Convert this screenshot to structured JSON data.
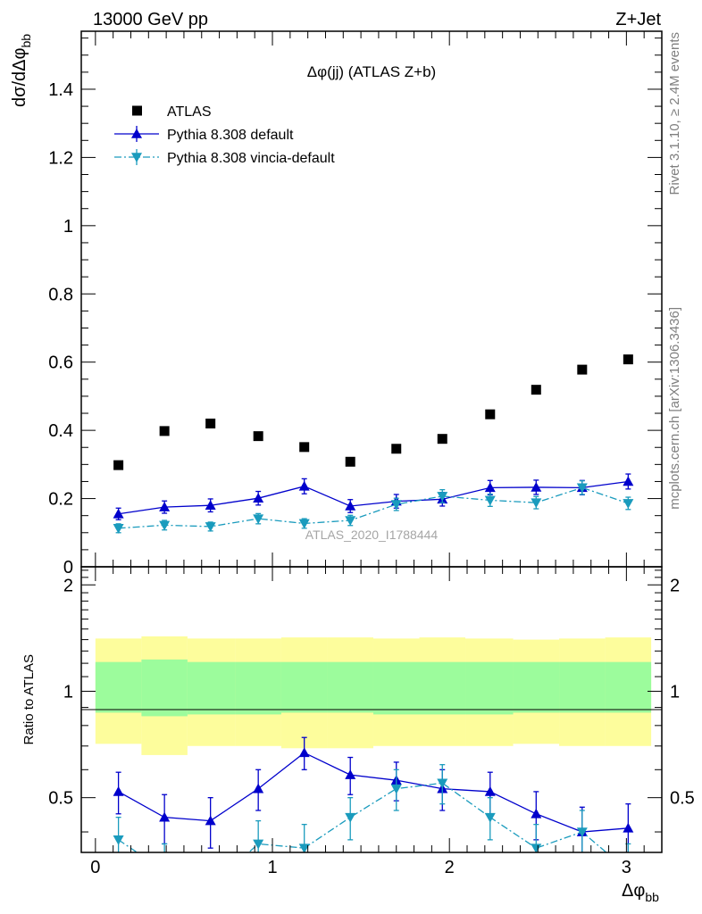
{
  "header": {
    "left": "13000 GeV pp",
    "right": "Z+Jet"
  },
  "side_labels": {
    "rivet": "Rivet 3.1.10, ≥ 2.4M events",
    "mcplots": "mcplots.cern.ch [arXiv:1306.3436]"
  },
  "watermark": "ATLAS_2020_I1788444",
  "chart_data": [
    {
      "type": "scatter",
      "title": "Δφ(jj) (ATLAS Z+b)",
      "ylabel": "dσ/dΔφbb",
      "xlim": [
        -0.08,
        3.2
      ],
      "ylim": [
        0,
        1.57
      ],
      "yticks": [
        0,
        0.2,
        0.4,
        0.6,
        0.8,
        1,
        1.2,
        1.4
      ],
      "ytick_labels": [
        "0",
        "0.2",
        "0.4",
        "0.6",
        "0.8",
        "1",
        "1.2",
        "1.4"
      ],
      "x": [
        0.13,
        0.39,
        0.65,
        0.92,
        1.18,
        1.44,
        1.7,
        1.96,
        2.23,
        2.49,
        2.75,
        3.01
      ],
      "series": [
        {
          "name": "ATLAS",
          "marker": "square",
          "color": "#000000",
          "values": [
            0.298,
            0.398,
            0.42,
            0.383,
            0.351,
            0.308,
            0.346,
            0.375,
            0.447,
            0.519,
            0.578,
            0.608
          ]
        },
        {
          "name": "Pythia 8.308 default",
          "marker": "triangle-up",
          "line": "solid",
          "color": "#0000cc",
          "values": [
            0.155,
            0.175,
            0.18,
            0.201,
            0.236,
            0.178,
            0.192,
            0.198,
            0.232,
            0.233,
            0.232,
            0.25
          ],
          "errors": [
            0.017,
            0.018,
            0.019,
            0.02,
            0.022,
            0.019,
            0.02,
            0.02,
            0.021,
            0.021,
            0.021,
            0.022
          ]
        },
        {
          "name": "Pythia 8.308 vincia-default",
          "marker": "triangle-down",
          "line": "dashdot",
          "color": "#1a9bbd",
          "values": [
            0.113,
            0.122,
            0.118,
            0.141,
            0.127,
            0.136,
            0.183,
            0.207,
            0.195,
            0.188,
            0.232,
            0.186
          ],
          "errors": [
            0.013,
            0.014,
            0.013,
            0.015,
            0.014,
            0.015,
            0.018,
            0.019,
            0.018,
            0.018,
            0.02,
            0.018
          ]
        }
      ]
    },
    {
      "type": "line",
      "ylabel": "Ratio to ATLAS",
      "xlabel": "Δφbb",
      "xlim": [
        -0.08,
        3.2
      ],
      "ylim": [
        0.35,
        2.25
      ],
      "yticks": [
        0.5,
        1,
        2
      ],
      "ytick_labels": [
        "0.5",
        "1",
        "2"
      ],
      "xticks": [
        0,
        1,
        2,
        3
      ],
      "xtick_labels": [
        "0",
        "1",
        "2",
        "3"
      ],
      "bins": [
        0.0,
        0.26,
        0.52,
        0.79,
        1.05,
        1.31,
        1.57,
        1.83,
        2.09,
        2.36,
        2.62,
        2.88,
        3.14
      ],
      "band_inner": [
        [
          0.87,
          1.21
        ],
        [
          0.85,
          1.23
        ],
        [
          0.86,
          1.21
        ],
        [
          0.86,
          1.21
        ],
        [
          0.87,
          1.21
        ],
        [
          0.87,
          1.21
        ],
        [
          0.86,
          1.21
        ],
        [
          0.86,
          1.21
        ],
        [
          0.86,
          1.21
        ],
        [
          0.87,
          1.21
        ],
        [
          0.87,
          1.21
        ],
        [
          0.87,
          1.21
        ]
      ],
      "band_outer": [
        [
          0.71,
          1.41
        ],
        [
          0.66,
          1.43
        ],
        [
          0.7,
          1.41
        ],
        [
          0.7,
          1.41
        ],
        [
          0.69,
          1.42
        ],
        [
          0.69,
          1.42
        ],
        [
          0.7,
          1.41
        ],
        [
          0.7,
          1.42
        ],
        [
          0.7,
          1.41
        ],
        [
          0.71,
          1.4
        ],
        [
          0.7,
          1.41
        ],
        [
          0.7,
          1.42
        ]
      ],
      "band_colors": {
        "inner": "#9cfc9c",
        "outer": "#fdfd9c"
      },
      "x": [
        0.13,
        0.39,
        0.65,
        0.92,
        1.18,
        1.44,
        1.7,
        1.96,
        2.23,
        2.49,
        2.75,
        3.01
      ],
      "series": [
        {
          "name": "Pythia 8.308 default",
          "color": "#0000cc",
          "marker": "triangle-up",
          "values": [
            0.52,
            0.44,
            0.43,
            0.53,
            0.67,
            0.58,
            0.56,
            0.53,
            0.52,
            0.45,
            0.4,
            0.41
          ],
          "errors": [
            0.07,
            0.07,
            0.07,
            0.07,
            0.07,
            0.07,
            0.07,
            0.07,
            0.07,
            0.07,
            0.07,
            0.07
          ]
        },
        {
          "name": "Pythia 8.308 vincia-default",
          "color": "#1a9bbd",
          "marker": "triangle-down",
          "values": [
            0.38,
            0.31,
            0.28,
            0.37,
            0.36,
            0.44,
            0.53,
            0.55,
            0.44,
            0.36,
            0.4,
            0.31
          ],
          "errors": [
            0.06,
            0.06,
            0.06,
            0.06,
            0.06,
            0.06,
            0.07,
            0.07,
            0.06,
            0.06,
            0.06,
            0.06
          ]
        }
      ]
    }
  ]
}
